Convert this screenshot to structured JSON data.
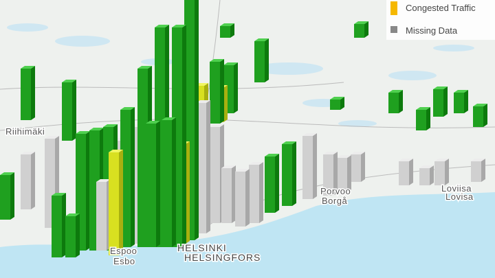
{
  "legend": {
    "items": [
      {
        "label": "Congested Traffic"
      },
      {
        "label": "Missing Data"
      }
    ]
  },
  "places": [
    "Riihimäki",
    "HELSINKI",
    "HELSINGFORS",
    "Espoo",
    "Esbo",
    "Porvoo",
    "Borgå",
    "Loviisa",
    "Lovisa"
  ]
}
